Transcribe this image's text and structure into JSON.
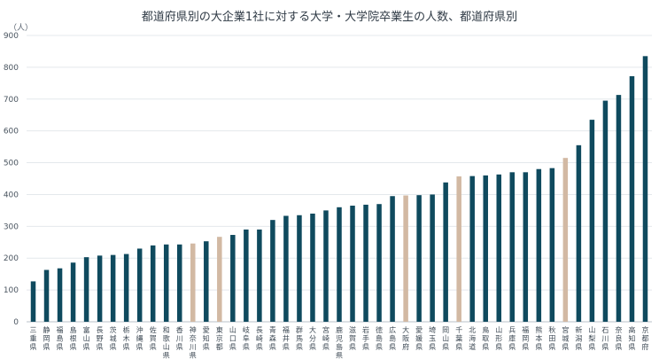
{
  "chart_data": {
    "type": "bar",
    "title": "都道府県別の大企業1社に対する大学・大学院卒業生の人数、都道府県別",
    "ylabel": "（人）",
    "xlabel": "",
    "ylim": [
      0,
      900
    ],
    "yticks": [
      0,
      100,
      200,
      300,
      400,
      500,
      600,
      700,
      800,
      900
    ],
    "grid": true,
    "categories": [
      "三重県",
      "静岡県",
      "福島県",
      "島根県",
      "富山県",
      "長野県",
      "茨城県",
      "栃木県",
      "沖縄県",
      "佐賀県",
      "和歌山県",
      "香川県",
      "神奈川県",
      "愛知県",
      "東京都",
      "山口県",
      "岐阜県",
      "長崎県",
      "青森県",
      "福井県",
      "群馬県",
      "大分県",
      "宮崎県",
      "鹿児島県",
      "滋賀県",
      "岩手県",
      "徳島県",
      "広島県",
      "大阪府",
      "愛媛県",
      "埼玉県",
      "岡山県",
      "千葉県",
      "北海道",
      "鳥取県",
      "山形県",
      "兵庫県",
      "福岡県",
      "熊本県",
      "秋田県",
      "宮城県",
      "新潟県",
      "山梨県",
      "石川県",
      "奈良県",
      "高知県",
      "京都府"
    ],
    "values": [
      127,
      163,
      168,
      186,
      203,
      208,
      210,
      213,
      230,
      240,
      243,
      243,
      246,
      253,
      267,
      273,
      290,
      290,
      320,
      333,
      335,
      340,
      350,
      360,
      365,
      368,
      370,
      395,
      397,
      398,
      400,
      438,
      457,
      458,
      460,
      463,
      470,
      470,
      480,
      483,
      515,
      555,
      635,
      695,
      713,
      772,
      835
    ],
    "highlight": [
      "神奈川県",
      "東京都",
      "大阪府",
      "千葉県",
      "宮城県"
    ],
    "colors": {
      "bar": "#0f4a5e",
      "highlight": "#d2b9a3",
      "grid": "#e4e8ec"
    }
  }
}
